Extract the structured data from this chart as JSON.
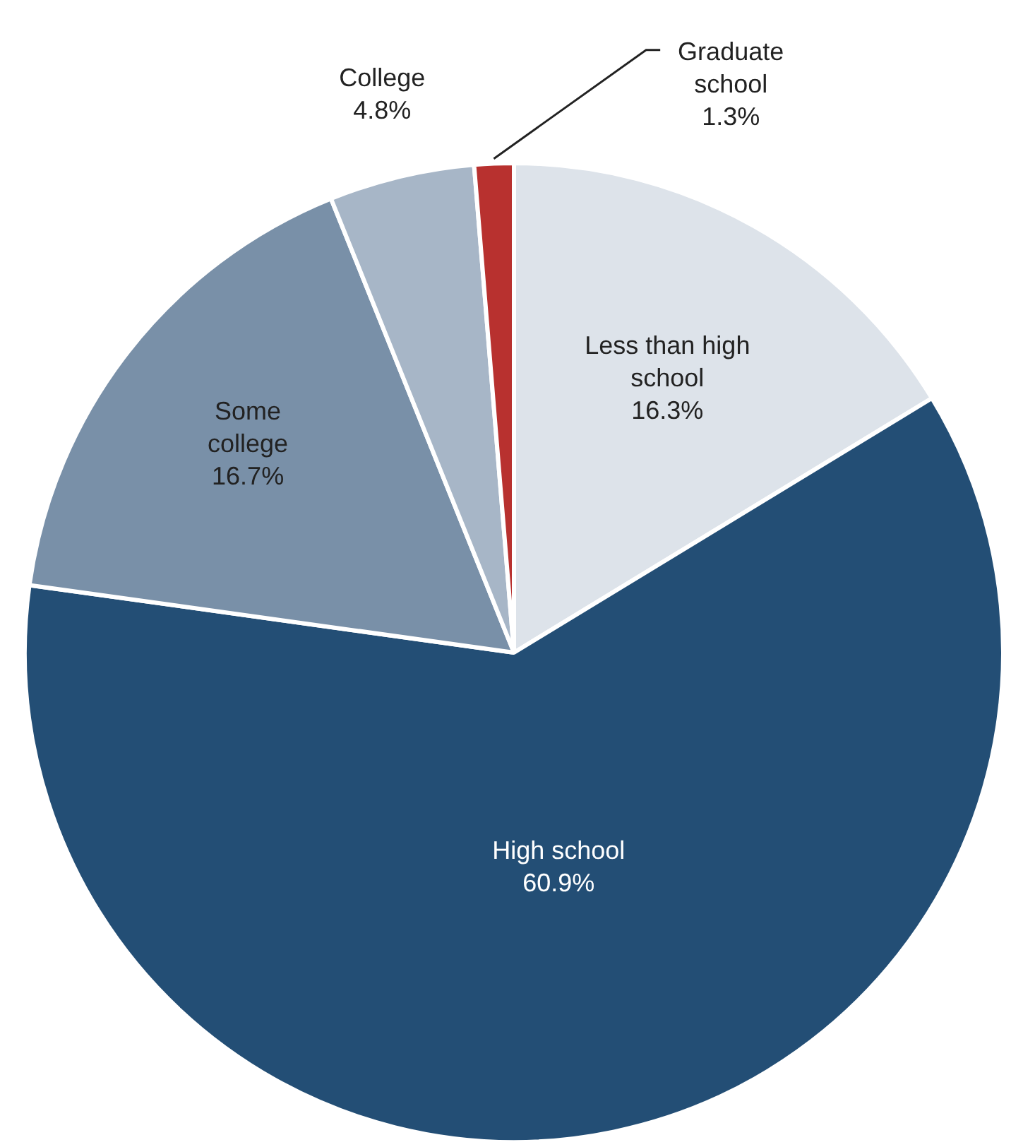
{
  "chart_data": {
    "type": "pie",
    "categories": [
      "Less than high school",
      "High school",
      "Some college",
      "College",
      "Graduate school"
    ],
    "values": [
      16.3,
      60.9,
      16.7,
      4.8,
      1.3
    ],
    "colors": [
      "#dde3ea",
      "#234e75",
      "#7990a8",
      "#a7b6c7",
      "#b8312f"
    ],
    "value_labels": [
      "16.3%",
      "60.9%",
      "16.7%",
      "4.8%",
      "1.3%"
    ],
    "legend": false
  }
}
